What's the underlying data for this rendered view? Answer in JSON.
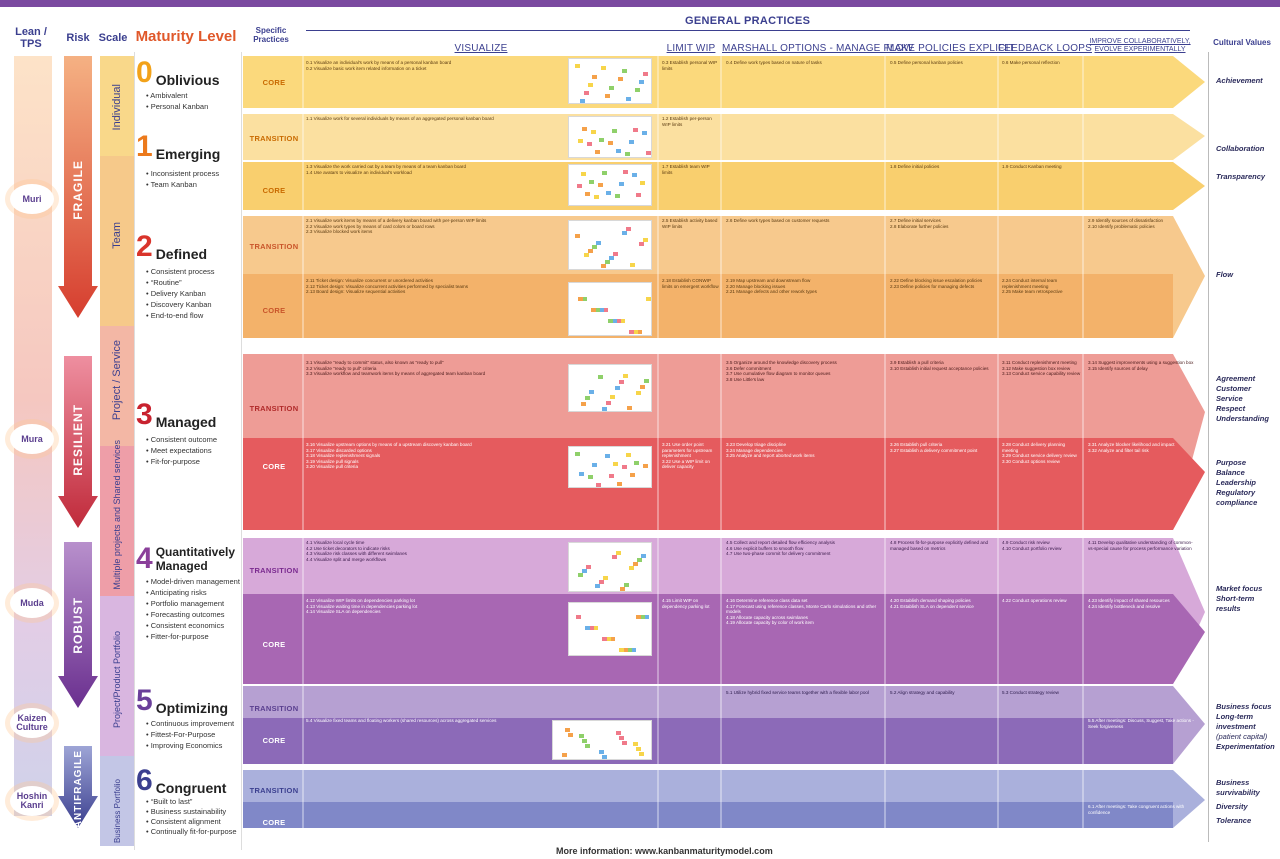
{
  "headers": {
    "lean": "Lean / TPS",
    "risk": "Risk",
    "scale": "Scale",
    "maturity": "Maturity Level",
    "specific": "Specific Practices",
    "general": "GENERAL PRACTICES",
    "cultural": "Cultural Values"
  },
  "practice_columns": [
    {
      "label": "VISUALIZE"
    },
    {
      "label": "LIMIT WIP"
    },
    {
      "label": "MARSHALL OPTIONS - MANAGE FLOW"
    },
    {
      "label": "MAKE POLICIES EXPLICIT"
    },
    {
      "label": "FEEDBACK LOOPS"
    },
    {
      "label": "IMPROVE COLLABORATIVELY, EVOLVE EXPERIMENTALLY"
    }
  ],
  "lean_terms": [
    "Muri",
    "Mura",
    "Muda",
    "Kaizen Culture",
    "Hoshin Kanri"
  ],
  "risk_levels": [
    "FRAGILE",
    "RESILIENT",
    "ROBUST",
    "ANTIFRAGILE"
  ],
  "scales": [
    "Individual",
    "Team",
    "Project / Service",
    "Multiple projects and Shared services",
    "Project/Product Portfolio",
    "Business Portfolio"
  ],
  "levels": [
    {
      "num": "0",
      "name": "Oblivious",
      "color": "#f2a21a",
      "items": [
        "Ambivalent",
        "Personal Kanban"
      ]
    },
    {
      "num": "1",
      "name": "Emerging",
      "color": "#ec7a1c",
      "items": [
        "Inconsistent process",
        "Team Kanban"
      ]
    },
    {
      "num": "2",
      "name": "Defined",
      "color": "#d9342b",
      "items": [
        "Consistent process",
        "“Routine”",
        "Delivery Kanban",
        "Discovery Kanban",
        "End-to-end flow"
      ]
    },
    {
      "num": "3",
      "name": "Managed",
      "color": "#c8222f",
      "items": [
        "Consistent outcome",
        "Meet expectations",
        "Fit-for-purpose"
      ]
    },
    {
      "num": "4",
      "name": "Quantitatively Managed",
      "color": "#8a3f9a",
      "items": [
        "Model-driven management",
        "Anticipating risks",
        "Portfolio management",
        "Forecasting outcomes",
        "Consistent economics",
        "Fitter-for-purpose"
      ]
    },
    {
      "num": "5",
      "name": "Optimizing",
      "color": "#6a3f9a",
      "items": [
        "Continuous improvement",
        "Fittest-For-Purpose",
        "Improving Economics"
      ]
    },
    {
      "num": "6",
      "name": "Congruent",
      "color": "#3b3f8f",
      "items": [
        "“Built to last”",
        "Business sustainability",
        "Consistent alignment",
        "Continually fit-for-purpose"
      ]
    }
  ],
  "bands": [
    {
      "label": "CORE",
      "cells": [
        "0.1 Visualize an individual's work by means of a personal kanban board\n0.2 Visualize basic work item related information on a ticket",
        "0.3 Establish personal WIP limits",
        "0.4 Define work types based on nature of tasks",
        "0.5 Define personal kanban policies",
        "0.6 Make personal reflection",
        ""
      ]
    },
    {
      "label": "TRANSITION",
      "cells": [
        "1.1 Visualize work for several individuals by means of an aggregated personal kanban board",
        "1.2 Establish per-person WIP limits",
        "",
        "",
        "",
        ""
      ]
    },
    {
      "label": "CORE",
      "cells": [
        "1.3 Visualize the work carried out by a team by means of a team kanban board\n1.4 Use avatars to visualize an individual's workload",
        "1.7 Establish team WIP limits",
        "",
        "1.8 Define initial policies",
        "1.9 Conduct Kanban meeting",
        ""
      ]
    },
    {
      "label": "TRANSITION",
      "cells": [
        "2.1 Visualize work items by means of a delivery kanban board with per-person WIP limits\n2.2 Visualize work types by means of card colors or board rows\n2.3 Visualize blocked work items",
        "2.5 Establish activity based WIP limits",
        "2.6 Define work types based on customer requests",
        "2.7 Define initial services\n2.8 Elaborate further policies",
        "",
        "2.9 Identify sources of dissatisfaction\n2.10 Identify problematic policies"
      ]
    },
    {
      "label": "CORE",
      "cells": [
        "2.11 Ticket design: Visualize concurrent or unordered activities\n2.12 Ticket design: Visualize concurrent activities performed by specialist teams\n2.13 Board design: Visualize sequential activities",
        "2.18 Establish CONWIP limits on emergent workflow",
        "2.19 Map upstream and downstream flow\n2.20 Manage blocking issues\n2.21 Manage defects and other rework types",
        "2.22 Define blocking issue escalation policies\n2.23 Define policies for managing defects",
        "2.24 Conduct internal team replenishment meeting\n2.25 Make team retrospective",
        ""
      ]
    },
    {
      "label": "TRANSITION",
      "cells": [
        "3.1 Visualize “ready to commit” status, also known as “ready to pull”\n3.2 Visualize “ready to pull” criteria\n3.3 Visualize workflow and teamwork items by means of aggregated team kanban board",
        "",
        "3.5 Organize around the knowledge discovery process\n3.6 Defer commitment\n3.7 Use cumulative flow diagram to monitor queues\n3.8 Use Little's law",
        "3.9 Establish a pull criteria\n3.10 Establish initial request acceptance policies",
        "3.11 Conduct replenishment meeting\n3.12 Make suggestion box review\n3.13 Conduct service capability review",
        "3.14 Suggest improvements using a suggestion box\n3.15 Identify sources of delay"
      ]
    },
    {
      "label": "CORE",
      "cells": [
        "3.16 Visualize upstream options by means of a upstream discovery kanban board\n3.17 Visualize discarded options\n3.18 Visualize replenishment signals\n3.19 Visualize pull signals\n3.20 Visualize pull criteria",
        "3.21 Use order point parameters for upstream replenishment\n3.22 Use a WIP limit on deliver capacity",
        "3.23 Develop triage discipline\n3.24 Manage dependencies\n3.25 Analyze and report aborted work items",
        "3.26 Establish pull criteria\n3.27 Establish a delivery commitment point",
        "3.28 Conduct delivery planning meeting\n3.29 Conduct service delivery review\n3.30 Conduct options review",
        "3.31 Analyze blocker likelihood and impact\n3.32 Analyze and filter tail risk"
      ]
    },
    {
      "label": "TRANSITION",
      "cells": [
        "4.1 Visualize local cycle time\n4.2 Use ticket decorators to indicate risks\n4.3 Visualize risk classes with different swimlanes\n4.4 Visualize split and merge workflows",
        "",
        "4.5 Collect and report detailed flow efficiency analysis\n4.6 Use explicit buffers to smooth flow\n4.7 Use two-phase commit for delivery commitment",
        "4.8 Process fit-for-purpose explicitly defined and managed based on metrics",
        "4.9 Conduct risk review\n4.10 Conduct portfolio review",
        "4.11 Develop qualitative understanding of common-vs-special cause for process performance variation"
      ]
    },
    {
      "label": "CORE",
      "cells": [
        "4.12 Visualize WIP limits on dependencies parking lot\n4.13 Visualize waiting time in dependencies parking lot\n4.14 Visualize SLA on dependencies",
        "4.15 Limit WIP on dependency parking lot",
        "4.16 Determine reference class data set\n4.17 Forecast using reference classes, Monte Carlo simulations and other models\n4.18 Allocate capacity across swimlanes\n4.19 Allocate capacity by color of work item",
        "4.20 Establish demand shaping policies\n4.21 Establish SLA on dependent service",
        "4.22 Conduct operations review",
        "4.23 Identify impact of shared resources\n4.24 Identify bottleneck and resolve"
      ]
    },
    {
      "label": "TRANSITION",
      "cells": [
        "",
        "",
        "5.1 Utilize hybrid fixed service teams together with a flexible labor pool",
        "5.2 Align strategy and capability",
        "5.3 Conduct strategy review",
        ""
      ]
    },
    {
      "label": "CORE",
      "cells": [
        "5.4 Visualize fixed teams and floating workers (shared resources) across aggregated services",
        "",
        "",
        "",
        "",
        "5.5 After meetings: Discuss, Suggest, Take actions - Seek forgiveness"
      ]
    },
    {
      "label": "TRANSITION",
      "cells": [
        "",
        "",
        "",
        "",
        "",
        ""
      ]
    },
    {
      "label": "CORE",
      "cells": [
        "",
        "",
        "",
        "",
        "",
        "6.1 After meetings: Take congruent actions with confidence"
      ]
    }
  ],
  "cultural_values": [
    [
      "Achievement"
    ],
    [
      "Collaboration"
    ],
    [
      "Transparency"
    ],
    [
      "Flow"
    ],
    [
      "Agreement",
      "Customer Service",
      "Respect",
      "Understanding"
    ],
    [
      "Purpose",
      "Balance",
      "Leadership",
      "Regulatory compliance"
    ],
    [
      "Market focus",
      "Short-term results"
    ],
    [
      "Business focus",
      "Long-term investment",
      "(patient capital)",
      "Experimentation"
    ],
    [
      "Business survivability",
      "Diversity",
      "Tolerance"
    ]
  ],
  "footer": "More information: www.kanbanmaturitymodel.com"
}
